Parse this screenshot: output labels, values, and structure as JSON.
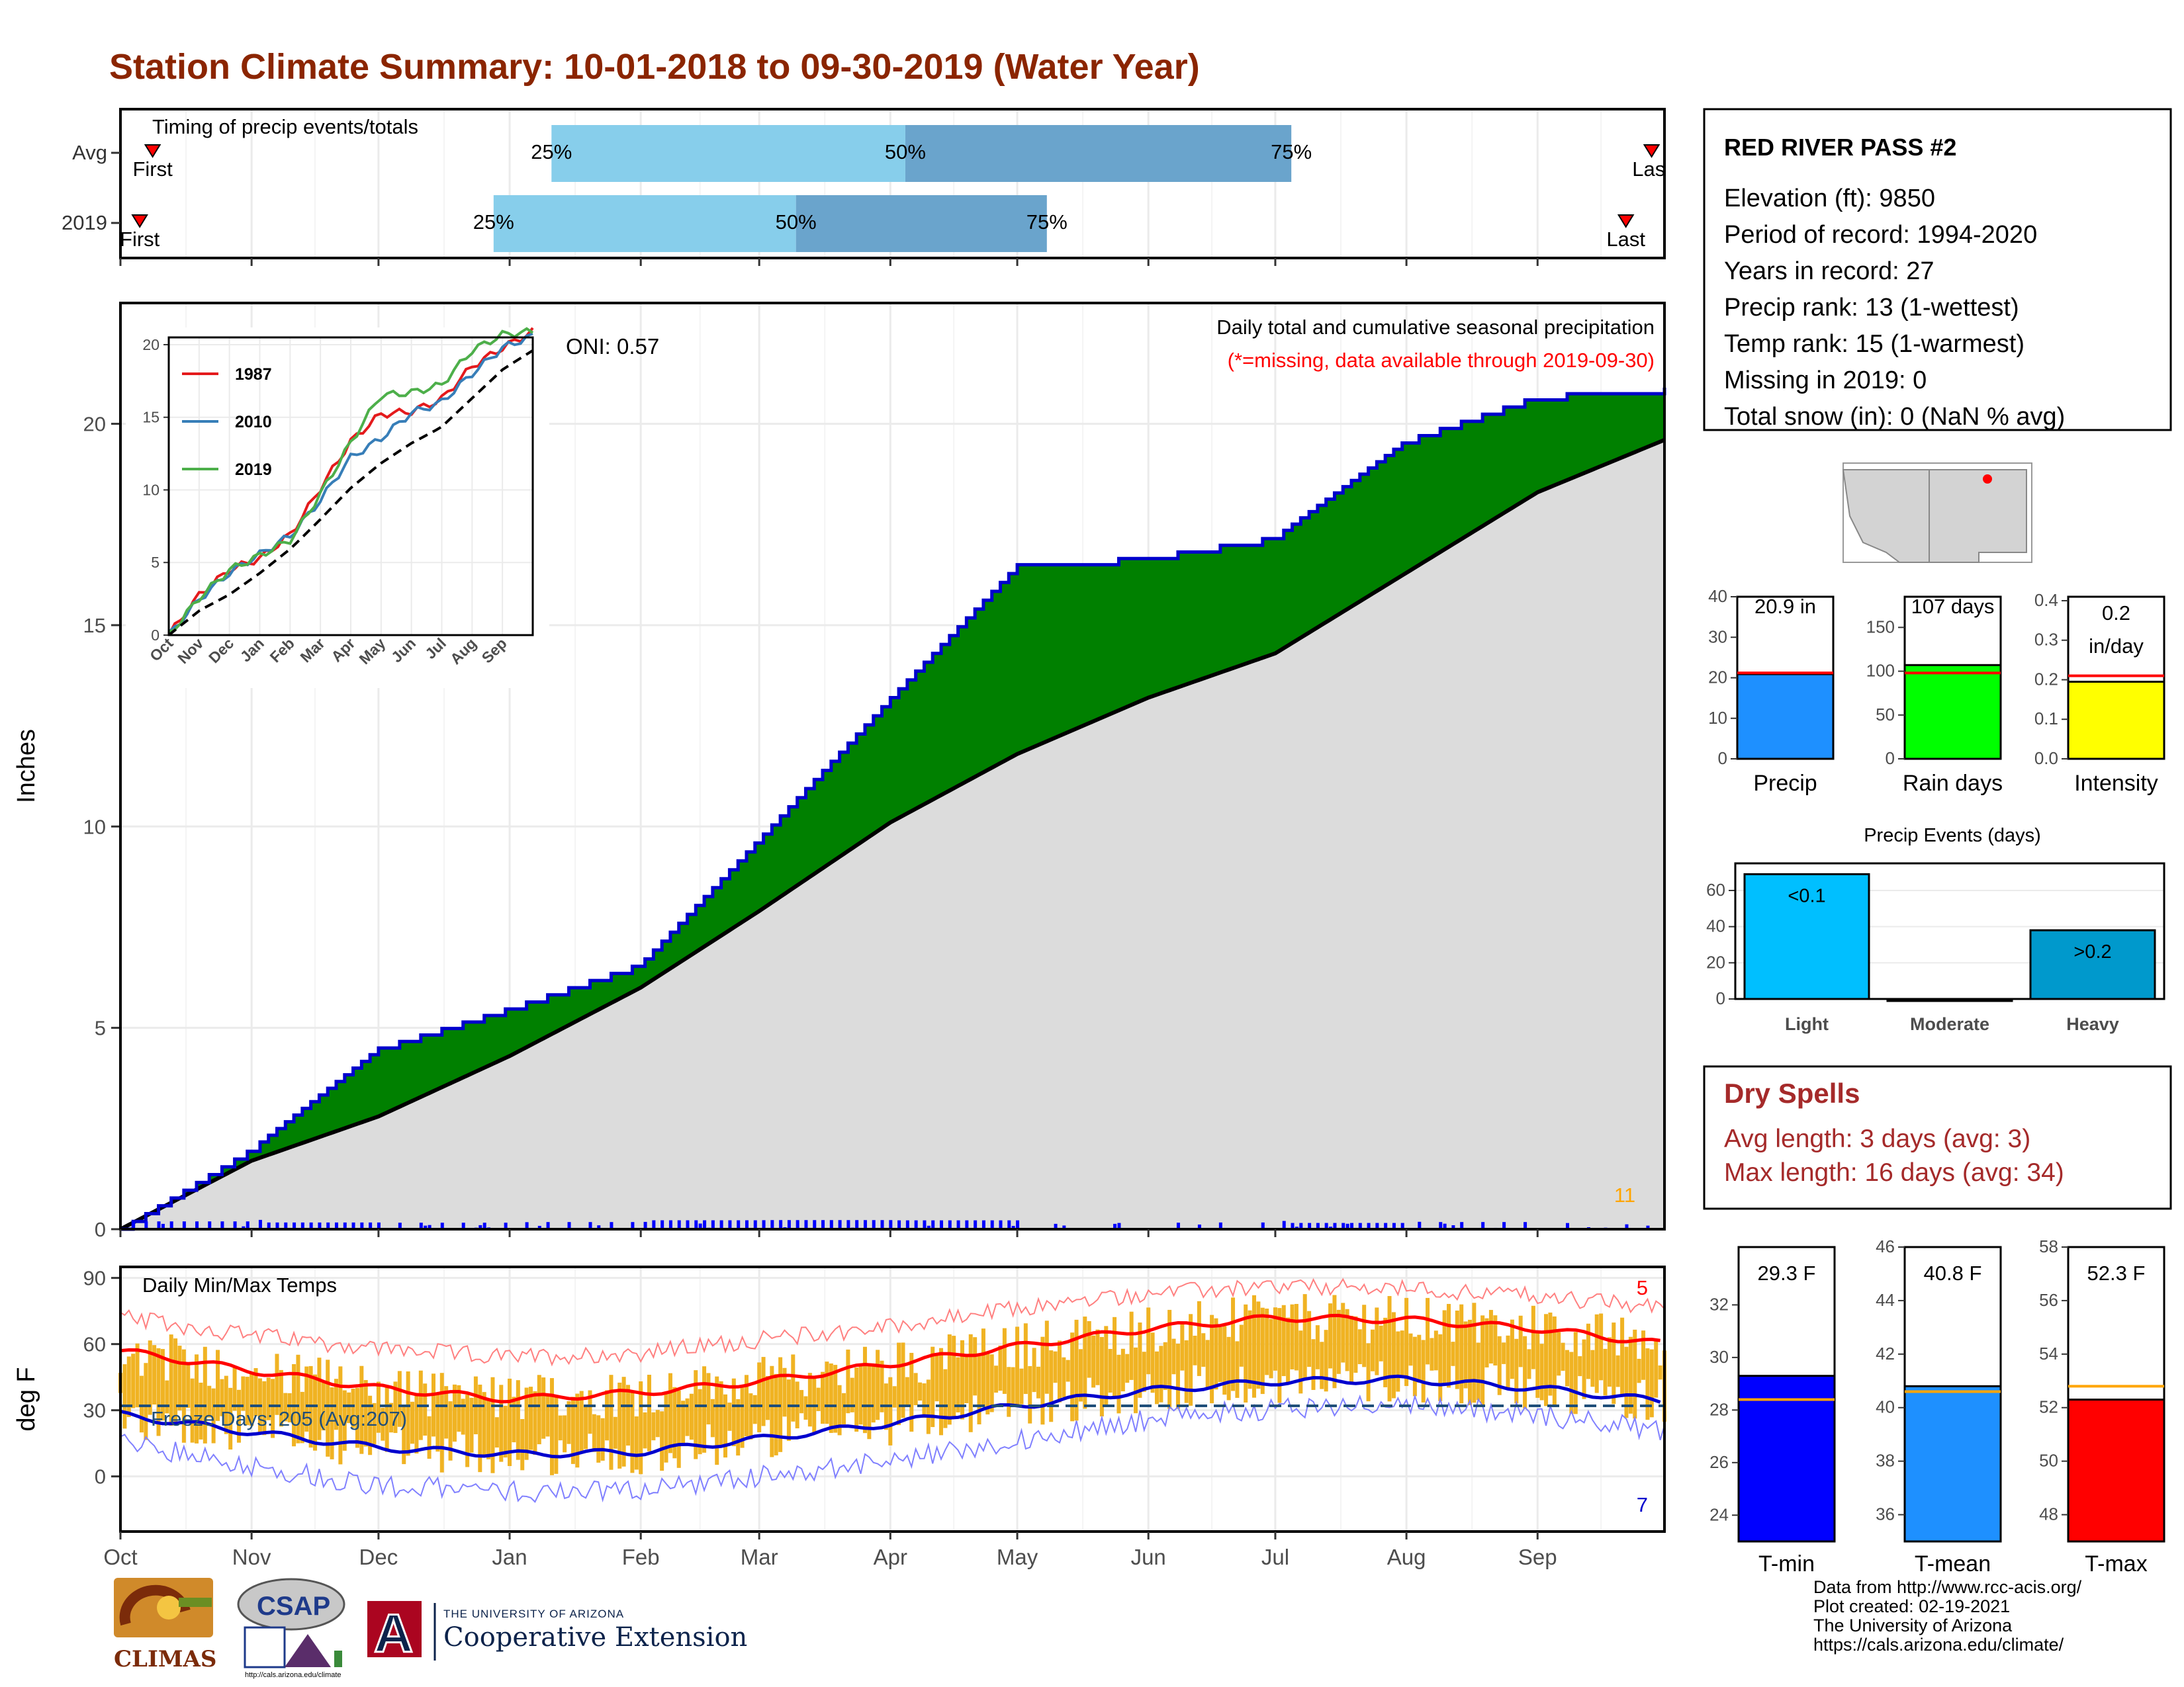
{
  "title": "Station Climate Summary: 10-01-2018 to 09-30-2019 (Water Year)",
  "timing": {
    "label": "Timing of precip events/totals",
    "rows": [
      {
        "name": "Avg",
        "first_label": "First",
        "last_label": "Last",
        "first_month": 0.25,
        "last_month": 11.9,
        "p25": 3.35,
        "p50": 6.1,
        "p75": 9.1,
        "pct_labels": [
          "25%",
          "50%",
          "75%"
        ]
      },
      {
        "name": "2019",
        "first_label": "First",
        "last_label": "Last",
        "first_month": 0.15,
        "last_month": 11.7,
        "p25": 2.9,
        "p50": 5.25,
        "p75": 7.2,
        "pct_labels": [
          "25%",
          "50%",
          "75%"
        ]
      }
    ],
    "colors": {
      "light": "#87ceeb",
      "dark": "#6aa4cc",
      "marker": "#ff0000"
    }
  },
  "precip_panel": {
    "ylabel": "Inches",
    "heading": "Daily total and cumulative seasonal precipitation",
    "missing_note": "(*=missing, data available through 2019-09-30)",
    "oni_label": "ONI: 0.57",
    "corner_count": "11",
    "yticks": [
      "0",
      "5",
      "10",
      "15",
      "20"
    ],
    "colors": {
      "above": "#008000",
      "avg_fill": "#dcdcdc",
      "line": "#0000cd",
      "avg_line": "#000000",
      "bars": "#0000ff",
      "marker": "#ffa500",
      "count": "#ffa500",
      "missing": "#ff0000"
    }
  },
  "inset": {
    "yticks": [
      "0",
      "5",
      "10",
      "15",
      "20"
    ],
    "xticks": [
      "Oct",
      "Nov",
      "Dec",
      "Jan",
      "Feb",
      "Mar",
      "Apr",
      "May",
      "Jun",
      "Jul",
      "Aug",
      "Sep"
    ],
    "legend": [
      {
        "name": "1987",
        "color": "#e41a1c"
      },
      {
        "name": "2010",
        "color": "#377eb8"
      },
      {
        "name": "2019",
        "color": "#4daf4a"
      }
    ]
  },
  "temp_panel": {
    "ylabel": "deg F",
    "heading": "Daily Min/Max Temps",
    "freeze_label": "Freeze Days: 205 (Avg:207)",
    "count_hot": "5",
    "count_cold": "7",
    "yticks": [
      "0",
      "30",
      "60",
      "90"
    ],
    "colors": {
      "bars": "#f0b323",
      "max_line": "#ff0000",
      "min_line": "#0000cd",
      "max_thin": "#ff8080",
      "min_thin": "#8080ff",
      "freeze": "#1f4e79"
    }
  },
  "months": [
    "Oct",
    "Nov",
    "Dec",
    "Jan",
    "Feb",
    "Mar",
    "Apr",
    "May",
    "Jun",
    "Jul",
    "Aug",
    "Sep"
  ],
  "station": {
    "name": "RED RIVER PASS #2",
    "lines": [
      "Elevation (ft): 9850",
      "Period of record: 1994-2020",
      "Years in record: 27",
      "Precip rank: 13 (1-wettest)",
      "Temp rank: 15 (1-warmest)",
      "Missing in 2019: 0",
      "Total snow (in): 0 (NaN % avg)"
    ]
  },
  "summary_bars": [
    {
      "name": "Precip",
      "value_label": "20.9 in",
      "value": 20.9,
      "avg": 21.2,
      "ymax": 40,
      "ticks": [
        "0",
        "10",
        "20",
        "30",
        "40"
      ],
      "tickvals": [
        0,
        10,
        20,
        30,
        40
      ],
      "color": "#1e90ff"
    },
    {
      "name": "Rain days",
      "value_label": "107 days",
      "value": 107,
      "avg": 98,
      "ymax": 185,
      "ticks": [
        "0",
        "50",
        "100",
        "150"
      ],
      "tickvals": [
        0,
        50,
        100,
        150
      ],
      "color": "#00ff00"
    },
    {
      "name": "Intensity",
      "value_label": "0.2 in/day",
      "value_line1": "0.2",
      "value_line2": "in/day",
      "value": 0.195,
      "avg": 0.21,
      "ymax": 0.41,
      "ticks": [
        "0.0",
        "0.1",
        "0.2",
        "0.3",
        "0.4"
      ],
      "tickvals": [
        0,
        0.1,
        0.2,
        0.3,
        0.4
      ],
      "color": "#ffff00"
    }
  ],
  "events": {
    "title": "Precip Events (days)",
    "categories": [
      "Light",
      "Moderate",
      "Heavy"
    ],
    "values": [
      69,
      0,
      38
    ],
    "bar_labels": [
      "<0.1",
      "",
      ">0.2"
    ],
    "ticks": [
      "0",
      "20",
      "40",
      "60"
    ],
    "colors": [
      "#00bfff",
      "#4682b4",
      "#0099cc"
    ]
  },
  "dry_spells": {
    "title": "Dry Spells",
    "avg_line": "Avg length: 3 days (avg: 3)",
    "max_line": "Max length: 16 days (avg: 34)"
  },
  "temp_bars": [
    {
      "name": "T-min",
      "value_label": "29.3 F",
      "value": 29.3,
      "avg": 28.4,
      "ymin": 23,
      "ymax": 34.2,
      "ticks": [
        "24",
        "26",
        "28",
        "30",
        "32"
      ],
      "tickvals": [
        24,
        26,
        28,
        30,
        32
      ],
      "color": "#0000ff"
    },
    {
      "name": "T-mean",
      "value_label": "40.8 F",
      "value": 40.8,
      "avg": 40.6,
      "ymin": 35,
      "ymax": 46,
      "ticks": [
        "36",
        "38",
        "40",
        "42",
        "44",
        "46"
      ],
      "tickvals": [
        36,
        38,
        40,
        42,
        44,
        46
      ],
      "color": "#1e90ff"
    },
    {
      "name": "T-max",
      "value_label": "52.3 F",
      "value": 52.3,
      "avg": 52.8,
      "ymin": 47,
      "ymax": 58,
      "ticks": [
        "48",
        "50",
        "52",
        "54",
        "56",
        "58"
      ],
      "tickvals": [
        48,
        50,
        52,
        54,
        56,
        58
      ],
      "color": "#ff0000"
    }
  ],
  "credits": [
    "Data from http://www.rcc-acis.org/",
    "Plot created: 02-19-2021",
    "The University of Arizona",
    "https://cals.arizona.edu/climate/"
  ],
  "logos": {
    "climas": "CLIMAS",
    "csap": "CSAP",
    "csap_url": "http://cals.arizona.edu/climate",
    "ua_small": "THE UNIVERSITY OF ARIZONA",
    "ua_big": "Cooperative Extension",
    "ua_letter": "A"
  },
  "chart_data": [
    {
      "type": "area",
      "title": "Daily total and cumulative seasonal precipitation",
      "ylabel": "Inches",
      "ylim": [
        0,
        23
      ],
      "x": [
        "Oct",
        "Nov",
        "Dec",
        "Jan",
        "Feb",
        "Mar",
        "Apr",
        "May",
        "Jun",
        "Jul",
        "Aug",
        "Sep",
        "end"
      ],
      "series": [
        {
          "values": [
            0,
            2.0,
            4.5,
            5.5,
            6.6,
            9.7,
            13.2,
            16.5,
            16.7,
            17.2,
            19.6,
            20.7,
            20.9
          ]
        },
        {
          "values": [
            0,
            1.7,
            2.8,
            4.3,
            6.0,
            7.9,
            10.1,
            11.8,
            13.2,
            14.3,
            16.3,
            18.3,
            19.6
          ]
        }
      ]
    },
    {
      "type": "line",
      "x": [
        "Oct",
        "Nov",
        "Dec",
        "Jan",
        "Feb",
        "Mar",
        "Apr",
        "May",
        "Jun",
        "Jul",
        "Aug",
        "Sep",
        "end"
      ],
      "ylim": [
        0,
        20.5
      ],
      "series": [
        {
          "name": "1987",
          "values": [
            0,
            2.8,
            4.5,
            5.3,
            7.0,
            10.0,
            13.3,
            15.2,
            15.4,
            16.2,
            18.5,
            19.8,
            20.9
          ]
        },
        {
          "name": "2010",
          "values": [
            0,
            2.5,
            4.3,
            5.6,
            6.9,
            9.2,
            12.2,
            13.5,
            15.3,
            16.0,
            18.0,
            19.8,
            20.6
          ]
        },
        {
          "name": "2019",
          "values": [
            0,
            2.6,
            4.5,
            5.5,
            6.6,
            9.6,
            13.2,
            16.5,
            16.7,
            17.2,
            19.6,
            20.7,
            20.9
          ]
        },
        {
          "values": [
            0,
            1.7,
            2.8,
            4.3,
            6.0,
            7.9,
            10.1,
            11.8,
            13.2,
            14.3,
            16.3,
            18.3,
            19.6
          ]
        }
      ]
    },
    {
      "type": "line",
      "title": "Daily Min/Max Temps",
      "ylabel": "deg F",
      "ylim": [
        -25,
        95
      ],
      "x": [
        "Oct",
        "Nov",
        "Dec",
        "Jan",
        "Feb",
        "Mar",
        "Apr",
        "May",
        "Jun",
        "Jul",
        "Aug",
        "Sep",
        "end"
      ],
      "series": [
        {
          "values": [
            57,
            48,
            40,
            35,
            38,
            43,
            51,
            59,
            67,
            72,
            71,
            67,
            60
          ]
        },
        {
          "values": [
            28,
            20,
            13,
            10,
            11,
            17,
            24,
            32,
            39,
            43,
            44,
            40,
            34
          ]
        },
        {
          "values": [
            72,
            64,
            58,
            54,
            56,
            62,
            68,
            76,
            83,
            86,
            85,
            82,
            76
          ]
        },
        {
          "values": [
            15,
            5,
            -4,
            -7,
            -6,
            0,
            7,
            16,
            26,
            31,
            33,
            28,
            21
          ]
        }
      ]
    },
    {
      "type": "bar",
      "title": "Precip Events (days)",
      "categories": [
        "Light",
        "Moderate",
        "Heavy"
      ],
      "values": [
        69,
        0,
        38
      ]
    }
  ]
}
